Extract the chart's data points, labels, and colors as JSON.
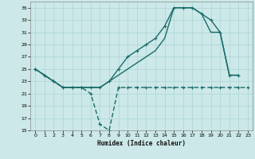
{
  "xlabel": "Humidex (Indice chaleur)",
  "bg_color": "#cce8e8",
  "grid_color": "#b0d8d8",
  "line_color": "#1a6b6b",
  "xlim": [
    -0.5,
    23.5
  ],
  "ylim": [
    15,
    36
  ],
  "yticks": [
    15,
    17,
    19,
    21,
    23,
    25,
    27,
    29,
    31,
    33,
    35
  ],
  "xticks": [
    0,
    1,
    2,
    3,
    4,
    5,
    6,
    7,
    8,
    9,
    10,
    11,
    12,
    13,
    14,
    15,
    16,
    17,
    18,
    19,
    20,
    21,
    22,
    23
  ],
  "line_upper_x": [
    0,
    1,
    2,
    3,
    4,
    5,
    6,
    7,
    8,
    9,
    10,
    11,
    12,
    13,
    14,
    15,
    16,
    17,
    18,
    19,
    20,
    21,
    22
  ],
  "line_upper_y": [
    25,
    24,
    23,
    22,
    22,
    22,
    22,
    22,
    23,
    24,
    25,
    26,
    27,
    28,
    30,
    35,
    35,
    35,
    34,
    31,
    31,
    24,
    24
  ],
  "line_mid_x": [
    0,
    1,
    2,
    3,
    4,
    5,
    6,
    7,
    8,
    9,
    10,
    11,
    12,
    13,
    14,
    15,
    16,
    17,
    18,
    19,
    20,
    21,
    22
  ],
  "line_mid_y": [
    25,
    24,
    23,
    22,
    22,
    22,
    22,
    22,
    23,
    25,
    27,
    28,
    29,
    30,
    32,
    35,
    35,
    35,
    34,
    33,
    31,
    24,
    24
  ],
  "line_low_x": [
    0,
    1,
    2,
    3,
    4,
    5,
    6,
    7,
    8,
    9,
    10,
    11,
    12,
    13,
    14,
    15,
    16,
    17,
    18,
    19,
    20,
    21,
    22,
    23
  ],
  "line_low_y": [
    25,
    24,
    23,
    22,
    22,
    22,
    21,
    16,
    15,
    22,
    22,
    22,
    22,
    22,
    22,
    22,
    22,
    22,
    22,
    22,
    22,
    22,
    22,
    22
  ]
}
